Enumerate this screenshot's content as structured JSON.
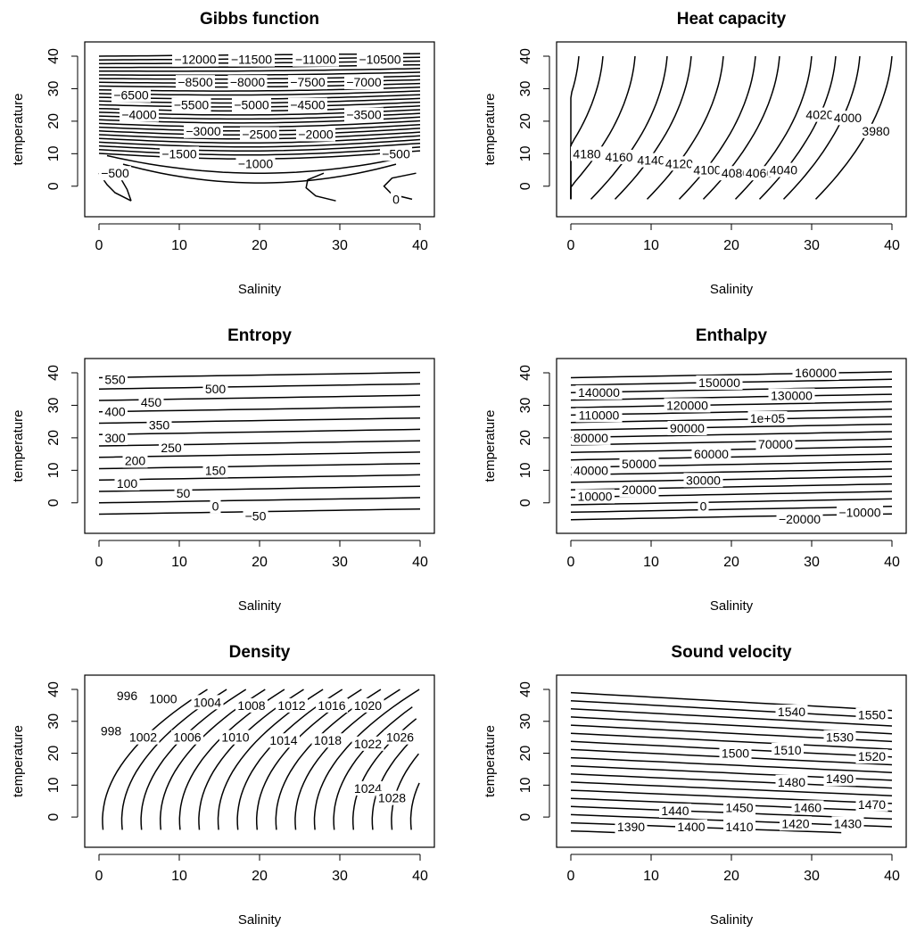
{
  "chart_data": [
    {
      "type": "contour",
      "title": "Gibbs function",
      "xlabel": "Salinity",
      "ylabel": "temperature",
      "xlim": [
        0,
        40
      ],
      "ylim": [
        -5,
        40
      ],
      "xticks": [
        0,
        10,
        20,
        30,
        40
      ],
      "yticks": [
        0,
        10,
        20,
        30,
        40
      ],
      "grid": false,
      "contour_labels": [
        {
          "text": "-12000",
          "x": 12,
          "y": 39
        },
        {
          "text": "-11500",
          "x": 19,
          "y": 39
        },
        {
          "text": "-11000",
          "x": 27,
          "y": 39
        },
        {
          "text": "-10500",
          "x": 35,
          "y": 39
        },
        {
          "text": "-8500",
          "x": 12,
          "y": 32
        },
        {
          "text": "-8000",
          "x": 18.5,
          "y": 32
        },
        {
          "text": "-7500",
          "x": 26,
          "y": 32
        },
        {
          "text": "-7000",
          "x": 33,
          "y": 32
        },
        {
          "text": "-6500",
          "x": 4,
          "y": 28
        },
        {
          "text": "-5500",
          "x": 11.5,
          "y": 25
        },
        {
          "text": "-5000",
          "x": 19,
          "y": 25
        },
        {
          "text": "-4500",
          "x": 26,
          "y": 25
        },
        {
          "text": "-4000",
          "x": 5,
          "y": 22
        },
        {
          "text": "-3500",
          "x": 33,
          "y": 22
        },
        {
          "text": "-3000",
          "x": 13,
          "y": 17
        },
        {
          "text": "-2500",
          "x": 20,
          "y": 16
        },
        {
          "text": "-2000",
          "x": 27,
          "y": 16
        },
        {
          "text": "-1500",
          "x": 10,
          "y": 10
        },
        {
          "text": "-1000",
          "x": 19.5,
          "y": 7
        },
        {
          "text": "-500",
          "x": 37,
          "y": 10
        },
        {
          "text": "-500",
          "x": 2,
          "y": 4
        },
        {
          "text": "0",
          "x": 37,
          "y": -4
        }
      ]
    },
    {
      "type": "contour",
      "title": "Heat capacity",
      "xlabel": "Salinity",
      "ylabel": "temperature",
      "xlim": [
        0,
        40
      ],
      "ylim": [
        -5,
        40
      ],
      "xticks": [
        0,
        10,
        20,
        30,
        40
      ],
      "yticks": [
        0,
        10,
        20,
        30,
        40
      ],
      "grid": false,
      "contour_labels": [
        {
          "text": "4180",
          "x": 2,
          "y": 10
        },
        {
          "text": "4160",
          "x": 6,
          "y": 9
        },
        {
          "text": "4140",
          "x": 10,
          "y": 8
        },
        {
          "text": "4120",
          "x": 13.5,
          "y": 7
        },
        {
          "text": "4100",
          "x": 17,
          "y": 5
        },
        {
          "text": "4080",
          "x": 20.5,
          "y": 4
        },
        {
          "text": "4060",
          "x": 23.5,
          "y": 4
        },
        {
          "text": "4040",
          "x": 26.5,
          "y": 5
        },
        {
          "text": "4020",
          "x": 31,
          "y": 22
        },
        {
          "text": "4000",
          "x": 34.5,
          "y": 21
        },
        {
          "text": "3980",
          "x": 38,
          "y": 17
        }
      ]
    },
    {
      "type": "contour",
      "title": "Entropy",
      "xlabel": "Salinity",
      "ylabel": "temperature",
      "xlim": [
        0,
        40
      ],
      "ylim": [
        -5,
        40
      ],
      "xticks": [
        0,
        10,
        20,
        30,
        40
      ],
      "yticks": [
        0,
        10,
        20,
        30,
        40
      ],
      "grid": false,
      "contour_labels": [
        {
          "text": "550",
          "x": 2,
          "y": 38
        },
        {
          "text": "500",
          "x": 14.5,
          "y": 35
        },
        {
          "text": "450",
          "x": 6.5,
          "y": 31
        },
        {
          "text": "400",
          "x": 2,
          "y": 28
        },
        {
          "text": "350",
          "x": 7.5,
          "y": 24
        },
        {
          "text": "300",
          "x": 2,
          "y": 20
        },
        {
          "text": "250",
          "x": 9,
          "y": 17
        },
        {
          "text": "200",
          "x": 4.5,
          "y": 13
        },
        {
          "text": "150",
          "x": 14.5,
          "y": 10
        },
        {
          "text": "100",
          "x": 3.5,
          "y": 6
        },
        {
          "text": "50",
          "x": 10.5,
          "y": 3
        },
        {
          "text": "0",
          "x": 14.5,
          "y": -1
        },
        {
          "text": "-50",
          "x": 19.5,
          "y": -4
        }
      ]
    },
    {
      "type": "contour",
      "title": "Enthalpy",
      "xlabel": "Salinity",
      "ylabel": "temperature",
      "xlim": [
        0,
        40
      ],
      "ylim": [
        -5,
        40
      ],
      "xticks": [
        0,
        10,
        20,
        30,
        40
      ],
      "yticks": [
        0,
        10,
        20,
        30,
        40
      ],
      "grid": false,
      "contour_labels": [
        {
          "text": "160000",
          "x": 30.5,
          "y": 40
        },
        {
          "text": "150000",
          "x": 18.5,
          "y": 37
        },
        {
          "text": "140000",
          "x": 3.5,
          "y": 34
        },
        {
          "text": "130000",
          "x": 27.5,
          "y": 33
        },
        {
          "text": "120000",
          "x": 14.5,
          "y": 30
        },
        {
          "text": "110000",
          "x": 3.5,
          "y": 27
        },
        {
          "text": "1e+05",
          "x": 24.5,
          "y": 26
        },
        {
          "text": "90000",
          "x": 14.5,
          "y": 23
        },
        {
          "text": "80000",
          "x": 2.5,
          "y": 20
        },
        {
          "text": "70000",
          "x": 25.5,
          "y": 18
        },
        {
          "text": "60000",
          "x": 17.5,
          "y": 15
        },
        {
          "text": "50000",
          "x": 8.5,
          "y": 12
        },
        {
          "text": "40000",
          "x": 2.5,
          "y": 10
        },
        {
          "text": "30000",
          "x": 16.5,
          "y": 7
        },
        {
          "text": "20000",
          "x": 8.5,
          "y": 4
        },
        {
          "text": "10000",
          "x": 3,
          "y": 2
        },
        {
          "text": "0",
          "x": 16.5,
          "y": -1
        },
        {
          "text": "-10000",
          "x": 36,
          "y": -3
        },
        {
          "text": "-20000",
          "x": 28.5,
          "y": -5
        }
      ]
    },
    {
      "type": "contour",
      "title": "Density",
      "xlabel": "Salinity",
      "ylabel": "temperature",
      "xlim": [
        0,
        40
      ],
      "ylim": [
        -5,
        40
      ],
      "xticks": [
        0,
        10,
        20,
        30,
        40
      ],
      "yticks": [
        0,
        10,
        20,
        30,
        40
      ],
      "grid": false,
      "contour_labels": [
        {
          "text": "996",
          "x": 3.5,
          "y": 38
        },
        {
          "text": "1000",
          "x": 8,
          "y": 37
        },
        {
          "text": "1004",
          "x": 13.5,
          "y": 36
        },
        {
          "text": "1008",
          "x": 19,
          "y": 35
        },
        {
          "text": "1012",
          "x": 24,
          "y": 35
        },
        {
          "text": "1016",
          "x": 29,
          "y": 35
        },
        {
          "text": "1020",
          "x": 33.5,
          "y": 35
        },
        {
          "text": "998",
          "x": 1.5,
          "y": 27
        },
        {
          "text": "1002",
          "x": 5.5,
          "y": 25
        },
        {
          "text": "1006",
          "x": 11,
          "y": 25
        },
        {
          "text": "1010",
          "x": 17,
          "y": 25
        },
        {
          "text": "1014",
          "x": 23,
          "y": 24
        },
        {
          "text": "1018",
          "x": 28.5,
          "y": 24
        },
        {
          "text": "1022",
          "x": 33.5,
          "y": 23
        },
        {
          "text": "1026",
          "x": 37.5,
          "y": 25
        },
        {
          "text": "1024",
          "x": 33.5,
          "y": 9
        },
        {
          "text": "1028",
          "x": 36.5,
          "y": 6
        }
      ]
    },
    {
      "type": "contour",
      "title": "Sound velocity",
      "xlabel": "Salinity",
      "ylabel": "temperature",
      "xlim": [
        0,
        40
      ],
      "ylim": [
        -5,
        40
      ],
      "xticks": [
        0,
        10,
        20,
        30,
        40
      ],
      "yticks": [
        0,
        10,
        20,
        30,
        40
      ],
      "grid": false,
      "contour_labels": [
        {
          "text": "1540",
          "x": 27.5,
          "y": 33
        },
        {
          "text": "1550",
          "x": 37.5,
          "y": 32
        },
        {
          "text": "1530",
          "x": 33.5,
          "y": 25
        },
        {
          "text": "1500",
          "x": 20.5,
          "y": 20
        },
        {
          "text": "1510",
          "x": 27,
          "y": 21
        },
        {
          "text": "1520",
          "x": 37.5,
          "y": 19
        },
        {
          "text": "1480",
          "x": 27.5,
          "y": 11
        },
        {
          "text": "1490",
          "x": 33.5,
          "y": 12
        },
        {
          "text": "1440",
          "x": 13,
          "y": 2
        },
        {
          "text": "1450",
          "x": 21,
          "y": 3
        },
        {
          "text": "1460",
          "x": 29.5,
          "y": 3
        },
        {
          "text": "1470",
          "x": 37.5,
          "y": 4
        },
        {
          "text": "1390",
          "x": 7.5,
          "y": -3
        },
        {
          "text": "1400",
          "x": 15,
          "y": -3
        },
        {
          "text": "1410",
          "x": 21,
          "y": -3
        },
        {
          "text": "1420",
          "x": 28,
          "y": -2
        },
        {
          "text": "1430",
          "x": 34.5,
          "y": -2
        }
      ]
    }
  ]
}
